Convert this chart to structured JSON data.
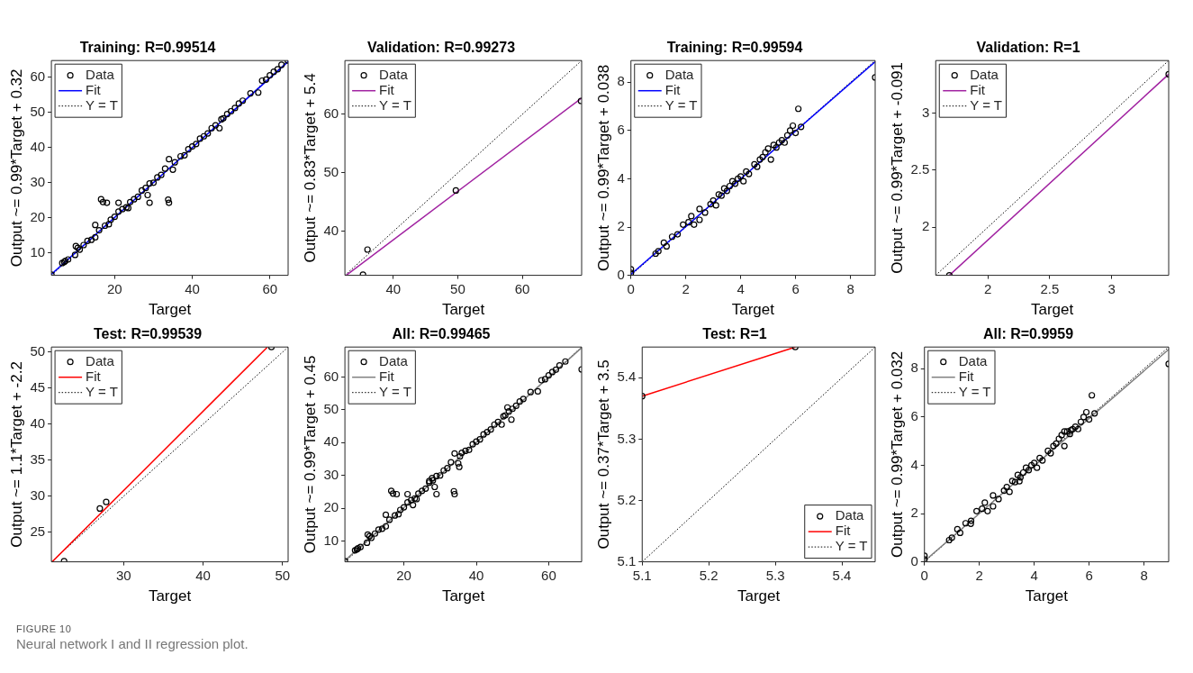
{
  "chart_data": [
    {
      "type": "scatter",
      "title": "Training: R=0.99514",
      "xlabel": "Target",
      "ylabel": "Output ~= 0.99*Target + 0.32",
      "xlim": [
        3.7,
        64.7
      ],
      "ylim": [
        3.7,
        64.7
      ],
      "xticks": [
        20,
        40,
        60
      ],
      "yticks": [
        10,
        20,
        30,
        40,
        50,
        60
      ],
      "legend": "top left",
      "series": [
        {
          "name": "Data",
          "type": "scatter",
          "marker": "circle",
          "color": "#000000",
          "x": [
            3.7,
            6.5,
            7,
            7.3,
            8,
            9.8,
            10,
            10.5,
            11,
            12,
            13,
            14,
            15,
            15,
            16,
            16.5,
            17,
            17.5,
            18,
            18.5,
            19,
            20,
            21,
            21,
            22,
            23,
            23.5,
            24,
            25,
            26,
            27,
            28,
            28.5,
            29,
            29,
            30,
            31,
            32,
            33,
            33.8,
            34,
            34,
            35,
            35.5,
            37,
            38,
            39,
            40,
            41,
            42,
            43,
            44,
            45,
            46,
            47,
            47.5,
            48,
            49,
            50,
            51,
            52,
            53,
            55,
            57,
            58,
            59,
            60,
            61,
            62,
            63,
            64.6
          ],
          "values": [
            3.9,
            7.2,
            7.5,
            7.8,
            8.2,
            9.5,
            12,
            11.5,
            11,
            12.3,
            13.5,
            13.8,
            18,
            14.5,
            16.5,
            25.3,
            24.5,
            17.8,
            24.3,
            18.2,
            19.5,
            20.3,
            24.3,
            21.8,
            22.5,
            23,
            22.8,
            24.5,
            25.3,
            26,
            27.8,
            28.5,
            26.5,
            24.3,
            29.8,
            30,
            31.5,
            32.2,
            34,
            25.2,
            24.3,
            36.7,
            33.7,
            35.8,
            37.5,
            37.8,
            39.5,
            40.3,
            41,
            42.5,
            43.2,
            44,
            45.5,
            46.3,
            45.5,
            48,
            48.3,
            49.5,
            50.3,
            51.2,
            52.5,
            53.3,
            55.4,
            55.6,
            59,
            59.3,
            60.5,
            61.5,
            62.2,
            63.5,
            64.7
          ]
        },
        {
          "name": "Fit",
          "type": "line",
          "marker": "none",
          "color": "#0000ff",
          "x": [
            3.7,
            64.7
          ],
          "values": [
            4,
            64.4
          ]
        },
        {
          "name": "Y = T",
          "type": "line",
          "marker": "none",
          "line_style": "dotted",
          "color": "#000000",
          "x": [
            3.7,
            64.7
          ],
          "values": [
            3.7,
            64.7
          ]
        }
      ]
    },
    {
      "type": "scatter",
      "title": "Validation: R=0.99273",
      "xlabel": "Target",
      "ylabel": "Output ~= 0.83*Target + 5.4",
      "xlim": [
        32.5,
        69.2
      ],
      "ylim": [
        32.5,
        69.2
      ],
      "xticks": [
        40,
        50,
        60
      ],
      "yticks": [
        40,
        50,
        60
      ],
      "legend": "top left",
      "series": [
        {
          "name": "Data",
          "type": "scatter",
          "marker": "circle",
          "color": "#000000",
          "x": [
            35.3,
            36,
            49.7,
            69.1
          ],
          "values": [
            32.6,
            36.9,
            47,
            62.3
          ]
        },
        {
          "name": "Fit",
          "type": "line",
          "marker": "none",
          "color": "#a020a0",
          "x": [
            32.7,
            69.2
          ],
          "values": [
            32.5,
            62.8
          ]
        },
        {
          "name": "Y = T",
          "type": "line",
          "marker": "none",
          "line_style": "dotted",
          "color": "#000000",
          "x": [
            32.5,
            69.2
          ],
          "values": [
            32.5,
            69.2
          ]
        }
      ]
    },
    {
      "type": "scatter",
      "title": "Training: R=0.99594",
      "xlabel": "Target",
      "ylabel": "Output ~= 0.99*Target + 0.038",
      "xlim": [
        0,
        8.9
      ],
      "ylim": [
        0,
        8.9
      ],
      "xticks": [
        0,
        2,
        4,
        6,
        8
      ],
      "yticks": [
        0,
        2,
        4,
        6,
        8
      ],
      "legend": "top left",
      "series": [
        {
          "name": "Data",
          "type": "scatter",
          "marker": "circle",
          "color": "#000000",
          "x": [
            0,
            0,
            0.9,
            1,
            1.2,
            1.3,
            1.5,
            1.7,
            1.9,
            2.1,
            2.2,
            2.3,
            2.5,
            2.5,
            2.7,
            2.9,
            3,
            3.1,
            3.2,
            3.3,
            3.4,
            3.5,
            3.6,
            3.7,
            3.8,
            3.9,
            4,
            4.1,
            4.2,
            4.3,
            4.5,
            4.6,
            4.7,
            4.8,
            4.9,
            5,
            5.1,
            5.2,
            5.3,
            5.4,
            5.5,
            5.6,
            5.7,
            5.8,
            5.9,
            6,
            6.1,
            6.2,
            8.9
          ],
          "values": [
            0.1,
            0.25,
            0.9,
            1,
            1.35,
            1.2,
            1.6,
            1.7,
            2.1,
            2.2,
            2.45,
            2.1,
            2.75,
            2.3,
            2.6,
            2.95,
            3.1,
            2.9,
            3.35,
            3.3,
            3.6,
            3.5,
            3.7,
            3.9,
            3.8,
            4,
            4.1,
            3.9,
            4.3,
            4.2,
            4.6,
            4.5,
            4.8,
            4.9,
            5.1,
            5.25,
            4.8,
            5.4,
            5.3,
            5.5,
            5.6,
            5.5,
            5.8,
            6,
            6.2,
            5.9,
            6.9,
            6.15,
            8.2
          ]
        },
        {
          "name": "Fit",
          "type": "line",
          "marker": "none",
          "color": "#0000ff",
          "x": [
            0,
            8.9
          ],
          "values": [
            0.04,
            8.85
          ]
        },
        {
          "name": "Y = T",
          "type": "line",
          "marker": "none",
          "line_style": "dotted",
          "color": "#000000",
          "x": [
            0,
            8.9
          ],
          "values": [
            0,
            8.9
          ]
        }
      ]
    },
    {
      "type": "scatter",
      "title": "Validation: R=1",
      "xlabel": "Target",
      "ylabel": "Output ~= 0.99*Target + -0.091",
      "xlim": [
        1.58,
        3.46
      ],
      "ylim": [
        1.58,
        3.46
      ],
      "xticks": [
        2,
        2.5,
        3
      ],
      "yticks": [
        2,
        2.5,
        3
      ],
      "legend": "top left",
      "series": [
        {
          "name": "Data",
          "type": "scatter",
          "marker": "circle",
          "color": "#000000",
          "x": [
            1.69,
            3.46
          ],
          "values": [
            1.58,
            3.34
          ]
        },
        {
          "name": "Fit",
          "type": "line",
          "marker": "none",
          "color": "#a020a0",
          "x": [
            1.69,
            3.46
          ],
          "values": [
            1.58,
            3.34
          ]
        },
        {
          "name": "Y = T",
          "type": "line",
          "marker": "none",
          "line_style": "dotted",
          "color": "#000000",
          "x": [
            1.58,
            3.46
          ],
          "values": [
            1.58,
            3.46
          ]
        }
      ]
    },
    {
      "type": "scatter",
      "title": "Test: R=0.99539",
      "xlabel": "Target",
      "ylabel": "Output ~= 1.1*Target + -2.2",
      "xlim": [
        20.9,
        50.7
      ],
      "ylim": [
        20.9,
        50.7
      ],
      "xticks": [
        30,
        40,
        50
      ],
      "yticks": [
        25,
        30,
        35,
        40,
        45,
        50
      ],
      "legend": "top left",
      "series": [
        {
          "name": "Data",
          "type": "scatter",
          "marker": "circle",
          "color": "#000000",
          "x": [
            22.5,
            27,
            27.8,
            48.6
          ],
          "values": [
            21,
            28.3,
            29.2,
            50.7
          ]
        },
        {
          "name": "Fit",
          "type": "line",
          "marker": "none",
          "color": "#ff0000",
          "x": [
            21,
            48.1
          ],
          "values": [
            20.9,
            50.7
          ]
        },
        {
          "name": "Y = T",
          "type": "line",
          "marker": "none",
          "line_style": "dotted",
          "color": "#000000",
          "x": [
            20.9,
            50.7
          ],
          "values": [
            20.9,
            50.7
          ]
        }
      ]
    },
    {
      "type": "scatter",
      "title": "All: R=0.99465",
      "xlabel": "Target",
      "ylabel": "Output ~= 0.99*Target + 0.45",
      "xlim": [
        3.7,
        69.1
      ],
      "ylim": [
        3.7,
        69.1
      ],
      "xticks": [
        20,
        40,
        60
      ],
      "yticks": [
        10,
        20,
        30,
        40,
        50,
        60
      ],
      "legend": "top left",
      "series": [
        {
          "name": "Data",
          "type": "scatter",
          "marker": "circle",
          "color": "#000000",
          "x": [
            3.7,
            6.5,
            7,
            7.3,
            8,
            9.8,
            10,
            10.5,
            11,
            12,
            13,
            14,
            15,
            15,
            16,
            16.5,
            17,
            17.5,
            18,
            18.5,
            19,
            20,
            21,
            21,
            22,
            23,
            23.5,
            24,
            25,
            26,
            27,
            28,
            28.5,
            29,
            29,
            30,
            31,
            32,
            33,
            33.8,
            34,
            34,
            35,
            35.5,
            37,
            38,
            39,
            40,
            41,
            42,
            43,
            44,
            45,
            46,
            47,
            47.5,
            48,
            49,
            50,
            51,
            52,
            53,
            55,
            57,
            58,
            59,
            60,
            61,
            62,
            63,
            64.6,
            35.3,
            36,
            49.7,
            69.1,
            22.5,
            27,
            27.8,
            48.6
          ],
          "values": [
            3.9,
            7.2,
            7.5,
            7.8,
            8.2,
            9.5,
            12,
            11.5,
            11,
            12.3,
            13.5,
            13.8,
            18,
            14.5,
            16.5,
            25.3,
            24.5,
            17.8,
            24.3,
            18.2,
            19.5,
            20.3,
            24.3,
            21.8,
            22.5,
            23,
            22.8,
            24.5,
            25.3,
            26,
            27.8,
            28.5,
            26.5,
            24.3,
            29.8,
            30,
            31.5,
            32.2,
            34,
            25.2,
            24.3,
            36.7,
            33.7,
            35.8,
            37.5,
            37.8,
            39.5,
            40.3,
            41,
            42.5,
            43.2,
            44,
            45.5,
            46.3,
            45.5,
            48,
            48.3,
            49.5,
            50.3,
            51.2,
            52.5,
            53.3,
            55.4,
            55.6,
            59,
            59.3,
            60.5,
            61.5,
            62.2,
            63.5,
            64.7,
            32.6,
            36.9,
            47,
            62.3,
            21,
            28.3,
            29.2,
            50.7
          ]
        },
        {
          "name": "Fit",
          "type": "line",
          "marker": "none",
          "color": "#808080",
          "x": [
            3.7,
            69.1
          ],
          "values": [
            4.1,
            68.9
          ]
        },
        {
          "name": "Y = T",
          "type": "line",
          "marker": "none",
          "line_style": "dotted",
          "color": "#000000",
          "x": [
            3.7,
            69.1
          ],
          "values": [
            3.7,
            69.1
          ]
        }
      ]
    },
    {
      "type": "scatter",
      "title": "Test: R=1",
      "xlabel": "Target",
      "ylabel": "Output ~= 0.37*Target + 3.5",
      "xlim": [
        5.1,
        5.45
      ],
      "ylim": [
        5.1,
        5.45
      ],
      "xticks": [
        5.1,
        5.2,
        5.3,
        5.4
      ],
      "yticks": [
        5.1,
        5.2,
        5.3,
        5.4
      ],
      "legend": "bottom right",
      "series": [
        {
          "name": "Data",
          "type": "scatter",
          "marker": "circle",
          "color": "#000000",
          "x": [
            5.1,
            5.33
          ],
          "values": [
            5.37,
            5.45
          ]
        },
        {
          "name": "Fit",
          "type": "line",
          "marker": "none",
          "color": "#ff0000",
          "x": [
            5.1,
            5.33
          ],
          "values": [
            5.37,
            5.45
          ]
        },
        {
          "name": "Y = T",
          "type": "line",
          "marker": "none",
          "line_style": "dotted",
          "color": "#000000",
          "x": [
            5.1,
            5.45
          ],
          "values": [
            5.1,
            5.45
          ]
        }
      ]
    },
    {
      "type": "scatter",
      "title": "All: R=0.9959",
      "xlabel": "Target",
      "ylabel": "Output ~= 0.99*Target + 0.032",
      "xlim": [
        0,
        8.9
      ],
      "ylim": [
        0,
        8.9
      ],
      "xticks": [
        0,
        2,
        4,
        6,
        8
      ],
      "yticks": [
        0,
        2,
        4,
        6,
        8
      ],
      "legend": "top left",
      "series": [
        {
          "name": "Data",
          "type": "scatter",
          "marker": "circle",
          "color": "#000000",
          "x": [
            0,
            0,
            0.9,
            1,
            1.2,
            1.3,
            1.5,
            1.7,
            1.69,
            1.9,
            2.1,
            2.2,
            2.3,
            2.5,
            2.5,
            2.7,
            2.9,
            3,
            3.1,
            3.2,
            3.3,
            3.4,
            3.46,
            3.5,
            3.6,
            3.7,
            3.8,
            3.9,
            4,
            4.1,
            4.2,
            4.3,
            4.5,
            4.6,
            4.7,
            4.8,
            4.9,
            5,
            5.1,
            5.1,
            5.2,
            5.3,
            5.33,
            5.4,
            5.5,
            5.6,
            5.7,
            5.8,
            5.9,
            6,
            6.1,
            6.2,
            8.9
          ],
          "values": [
            0.1,
            0.25,
            0.9,
            1,
            1.35,
            1.2,
            1.6,
            1.7,
            1.58,
            2.1,
            2.2,
            2.45,
            2.1,
            2.75,
            2.3,
            2.6,
            2.95,
            3.1,
            2.9,
            3.35,
            3.3,
            3.6,
            3.34,
            3.5,
            3.7,
            3.9,
            3.8,
            4,
            4.1,
            3.9,
            4.3,
            4.2,
            4.6,
            4.5,
            4.8,
            4.9,
            5.1,
            5.25,
            4.8,
            5.4,
            5.4,
            5.3,
            5.45,
            5.5,
            5.6,
            5.5,
            5.8,
            6,
            6.2,
            5.9,
            6.9,
            6.15,
            8.2
          ]
        },
        {
          "name": "Fit",
          "type": "line",
          "marker": "none",
          "color": "#808080",
          "x": [
            0,
            8.9
          ],
          "values": [
            0.03,
            8.8
          ]
        },
        {
          "name": "Y = T",
          "type": "line",
          "marker": "none",
          "line_style": "dotted",
          "color": "#000000",
          "x": [
            0,
            8.9
          ],
          "values": [
            0,
            8.9
          ]
        }
      ]
    },
    {
      "type": "other",
      "annotations": [
        "FIGURE 10",
        "Neural network I and II regression plot."
      ]
    }
  ]
}
